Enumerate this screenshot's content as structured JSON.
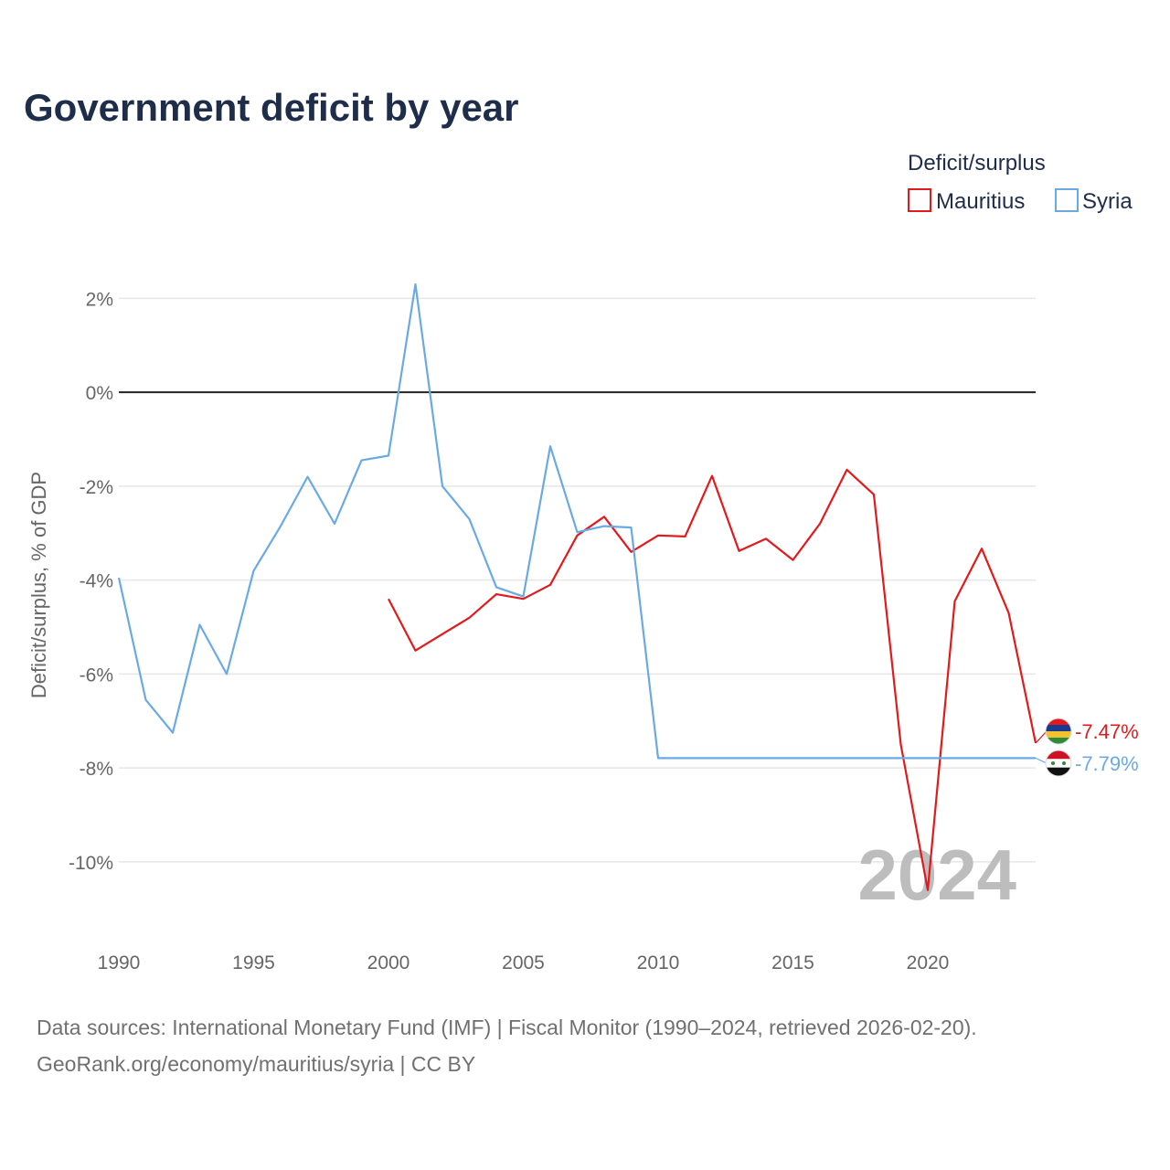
{
  "title": "Government deficit by year",
  "legend": {
    "title": "Deficit/surplus",
    "items": [
      {
        "name": "Mauritius",
        "color": "#e31a1c"
      },
      {
        "name": "Syria",
        "color": "#6aaae4"
      }
    ]
  },
  "year_label": "2024",
  "source": {
    "line1": "Data sources: International Monetary Fund (IMF) | Fiscal Monitor (1990–2024, retrieved 2026-02-20).",
    "line2": "GeoRank.org/economy/mauritius/syria | CC BY"
  },
  "chart_data": {
    "type": "line",
    "title": "Government deficit by year",
    "xlabel": "",
    "ylabel": "Deficit/surplus, % of GDP",
    "xlim": [
      1990,
      2024
    ],
    "ylim": [
      -11.5,
      3
    ],
    "x_ticks": [
      1990,
      1995,
      2000,
      2005,
      2010,
      2015,
      2020
    ],
    "y_ticks": [
      2,
      0,
      -2,
      -4,
      -6,
      -8,
      -10
    ],
    "y_tick_labels": [
      "2%",
      "0%",
      "-2%",
      "-4%",
      "-6%",
      "-8%",
      "-10%"
    ],
    "series": [
      {
        "name": "Mauritius",
        "color": "#e31a1c",
        "end_label": "-7.47%",
        "x": [
          2000,
          2001,
          2002,
          2003,
          2004,
          2005,
          2006,
          2007,
          2008,
          2009,
          2010,
          2011,
          2012,
          2013,
          2014,
          2015,
          2016,
          2017,
          2018,
          2019,
          2020,
          2021,
          2022,
          2023,
          2024
        ],
        "values": [
          -4.4,
          -5.5,
          -5.15,
          -4.8,
          -4.3,
          -4.4,
          -4.1,
          -3.05,
          -2.65,
          -3.4,
          -3.05,
          -3.07,
          -1.78,
          -3.38,
          -3.12,
          -3.57,
          -2.8,
          -1.65,
          -2.18,
          -7.5,
          -10.6,
          -4.45,
          -3.33,
          -4.7,
          -7.47
        ]
      },
      {
        "name": "Syria",
        "color": "#6aaae4",
        "end_label": "-7.79%",
        "x": [
          1990,
          1991,
          1992,
          1993,
          1994,
          1995,
          1996,
          1997,
          1998,
          1999,
          2000,
          2001,
          2002,
          2003,
          2004,
          2005,
          2006,
          2007,
          2008,
          2009,
          2010,
          2024
        ],
        "values": [
          -3.95,
          -6.55,
          -7.25,
          -4.95,
          -6.0,
          -3.8,
          -2.85,
          -1.8,
          -2.8,
          -1.45,
          -1.35,
          2.3,
          -2.0,
          -2.7,
          -4.15,
          -4.35,
          -1.15,
          -2.98,
          -2.85,
          -2.88,
          -7.79,
          -7.79
        ]
      }
    ]
  }
}
